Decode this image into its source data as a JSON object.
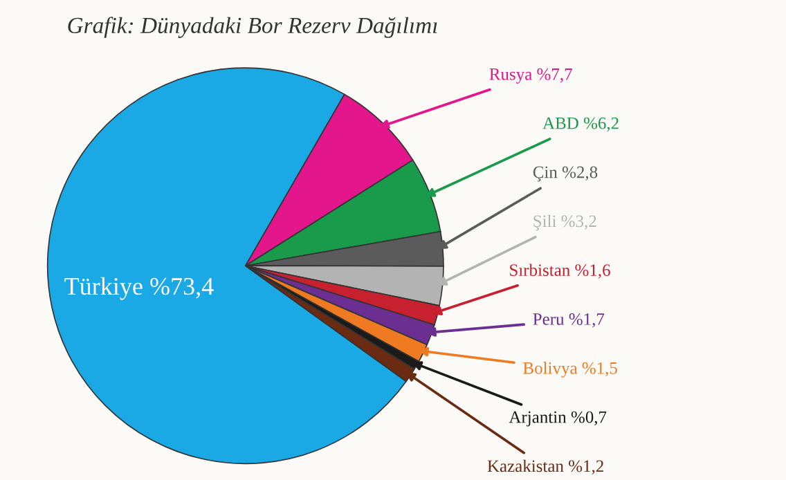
{
  "chart_data": {
    "type": "pie",
    "title": "Grafik: Dünyadaki Bor Rezerv Dağılımı",
    "categories": [
      "Türkiye",
      "Rusya",
      "ABD",
      "Çin",
      "Şili",
      "Sırbistan",
      "Peru",
      "Bolivya",
      "Arjantin",
      "Kazakistan"
    ],
    "values": [
      73.4,
      7.7,
      6.2,
      2.8,
      3.2,
      1.6,
      1.7,
      1.5,
      0.7,
      1.2
    ],
    "value_labels": [
      "%73,4",
      "%7,7",
      "%6,2",
      "%2,8",
      "%3,2",
      "%1,6",
      "%1,7",
      "%1,5",
      "%0,7",
      "%1,2"
    ],
    "colors": [
      "#1aa9e5",
      "#e3168c",
      "#1a9a4b",
      "#5b5b5b",
      "#b3b3b3",
      "#c7202f",
      "#6a2f91",
      "#ef7a22",
      "#1a1a1a",
      "#6b2a12"
    ],
    "legend": false
  }
}
